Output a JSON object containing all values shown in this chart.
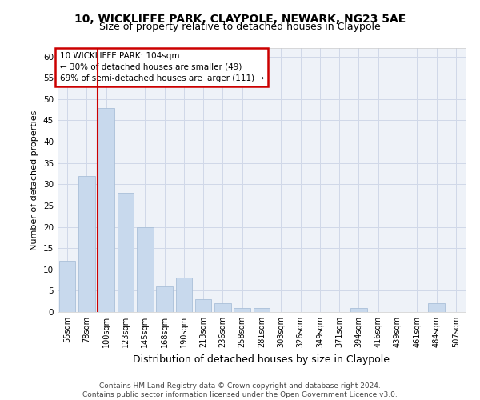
{
  "title1": "10, WICKLIFFE PARK, CLAYPOLE, NEWARK, NG23 5AE",
  "title2": "Size of property relative to detached houses in Claypole",
  "xlabel": "Distribution of detached houses by size in Claypole",
  "ylabel": "Number of detached properties",
  "categories": [
    "55sqm",
    "78sqm",
    "100sqm",
    "123sqm",
    "145sqm",
    "168sqm",
    "190sqm",
    "213sqm",
    "236sqm",
    "258sqm",
    "281sqm",
    "303sqm",
    "326sqm",
    "349sqm",
    "371sqm",
    "394sqm",
    "416sqm",
    "439sqm",
    "461sqm",
    "484sqm",
    "507sqm"
  ],
  "values": [
    12,
    32,
    48,
    28,
    20,
    6,
    8,
    3,
    2,
    1,
    1,
    0,
    0,
    0,
    0,
    1,
    0,
    0,
    0,
    2,
    0
  ],
  "bar_color": "#c8d9ed",
  "bar_edge_color": "#aabfd8",
  "vline_color": "#cc0000",
  "ylim": [
    0,
    62
  ],
  "yticks": [
    0,
    5,
    10,
    15,
    20,
    25,
    30,
    35,
    40,
    45,
    50,
    55,
    60
  ],
  "annotation_lines": [
    "10 WICKLIFFE PARK: 104sqm",
    "← 30% of detached houses are smaller (49)",
    "69% of semi-detached houses are larger (111) →"
  ],
  "annotation_box_color": "#ffffff",
  "annotation_box_edge": "#cc0000",
  "grid_color": "#d0d8e8",
  "background_color": "#eef2f8",
  "footer_line1": "Contains HM Land Registry data © Crown copyright and database right 2024.",
  "footer_line2": "Contains public sector information licensed under the Open Government Licence v3.0.",
  "title1_fontsize": 10,
  "title2_fontsize": 9,
  "ylabel_fontsize": 8,
  "xlabel_fontsize": 9,
  "tick_fontsize": 7,
  "annot_fontsize": 7.5,
  "footer_fontsize": 6.5,
  "vline_bar_index": 2
}
